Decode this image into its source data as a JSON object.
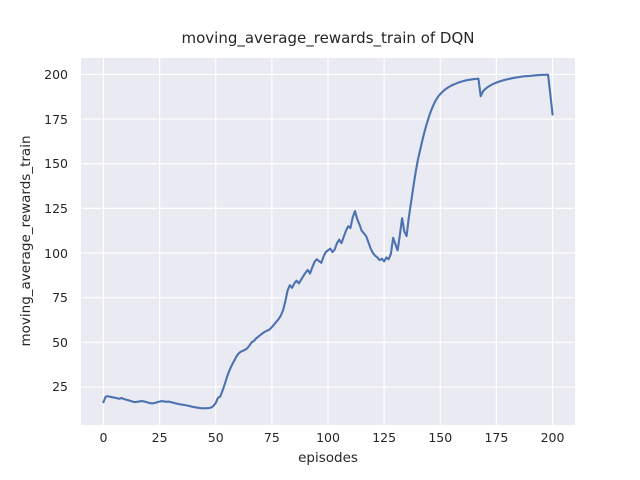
{
  "chart_data": {
    "type": "line",
    "title": "moving_average_rewards_train of DQN",
    "xlabel": "episodes",
    "ylabel": "moving_average_rewards_train",
    "x_description": "episode index 0..200, one value per episode",
    "xticks": [
      0,
      25,
      50,
      75,
      100,
      125,
      150,
      175,
      200
    ],
    "yticks": [
      25,
      50,
      75,
      100,
      125,
      150,
      175,
      200
    ],
    "xlim": [
      -10,
      210
    ],
    "ylim": [
      3.7,
      209.2
    ],
    "grid": true,
    "legend": false,
    "colors": {
      "line": "#4c72b0",
      "plot_background": "#eaeaf2",
      "grid": "#ffffff",
      "text": "#262626",
      "figure_background": "#ffffff"
    },
    "series": [
      {
        "name": "moving_average_rewards_train",
        "color": "#4c72b0",
        "values": [
          16.5,
          19.6,
          19.8,
          19.5,
          19.2,
          19.0,
          18.7,
          18.4,
          18.8,
          18.3,
          17.9,
          17.6,
          17.2,
          16.8,
          16.5,
          16.7,
          16.9,
          17.1,
          16.9,
          16.6,
          16.2,
          15.9,
          15.8,
          16.1,
          16.5,
          16.8,
          17.1,
          16.9,
          16.7,
          16.8,
          16.5,
          16.2,
          15.9,
          15.6,
          15.3,
          15.1,
          14.9,
          14.7,
          14.4,
          14.1,
          13.8,
          13.6,
          13.4,
          13.2,
          13.1,
          13.0,
          13.1,
          13.2,
          13.5,
          14.4,
          16.0,
          18.9,
          19.6,
          22.8,
          26.5,
          30.5,
          34.0,
          36.8,
          39.2,
          41.5,
          43.5,
          44.6,
          45.2,
          45.8,
          46.6,
          48.2,
          50.0,
          50.8,
          52.2,
          53.2,
          54.2,
          55.2,
          56.0,
          56.6,
          57.2,
          58.5,
          60.0,
          61.5,
          63.0,
          65.0,
          68.0,
          73.0,
          79.0,
          82.0,
          80.5,
          83.0,
          84.5,
          83.0,
          85.0,
          87.0,
          89.0,
          90.5,
          88.5,
          92.0,
          95.0,
          96.5,
          95.5,
          94.5,
          98.0,
          100.5,
          101.5,
          102.5,
          100.5,
          102.0,
          105.5,
          107.5,
          105.5,
          109.0,
          112.5,
          115.0,
          114.0,
          120.0,
          123.5,
          119.0,
          116.0,
          112.5,
          111.0,
          109.5,
          106.0,
          102.5,
          100.0,
          98.5,
          97.5,
          96.0,
          96.8,
          95.3,
          97.5,
          96.5,
          99.5,
          108.5,
          105.0,
          101.5,
          110.0,
          119.5,
          112.0,
          109.5,
          120.0,
          128.5,
          137.0,
          145.0,
          152.0,
          157.5,
          163.0,
          168.0,
          172.5,
          176.5,
          180.0,
          183.0,
          185.5,
          187.5,
          189.0,
          190.3,
          191.4,
          192.3,
          193.1,
          193.8,
          194.4,
          194.9,
          195.4,
          195.8,
          196.2,
          196.5,
          196.8,
          197.0,
          197.2,
          197.4,
          197.5,
          197.6,
          187.8,
          190.5,
          191.8,
          192.8,
          193.6,
          194.3,
          194.9,
          195.4,
          195.9,
          196.3,
          196.7,
          197.0,
          197.3,
          197.6,
          197.9,
          198.1,
          198.3,
          198.5,
          198.7,
          198.9,
          199.0,
          199.1,
          199.2,
          199.3,
          199.45,
          199.55,
          199.6,
          199.7,
          199.75,
          199.8,
          199.85,
          189.0,
          177.5
        ]
      }
    ]
  }
}
